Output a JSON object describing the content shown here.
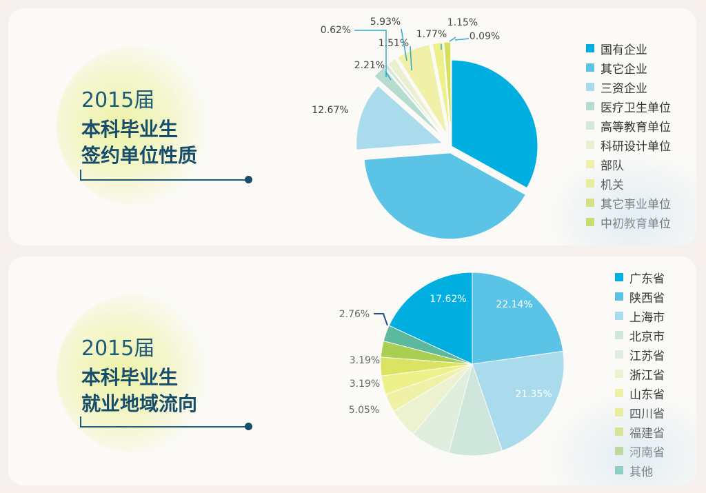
{
  "chart_data": [
    {
      "type": "pie",
      "title_year": "2015届",
      "title_line1": "本科毕业生",
      "title_line2": "签约单位性质",
      "labels": [
        "国有企业",
        "其它企业",
        "三资企业",
        "医疗卫生单位",
        "高等教育单位",
        "科研设计单位",
        "部队",
        "机关",
        "其它事业单位",
        "中初教育单位"
      ],
      "values": [
        32.69,
        40.27,
        12.67,
        2.21,
        0.62,
        1.51,
        5.93,
        1.77,
        1.15,
        0.09
      ],
      "value_labels": [
        "",
        "",
        "12.67%",
        "2.21%",
        "0.62%",
        "1.51%",
        "5.93%",
        "1.77%",
        "1.15%",
        "0.09%"
      ],
      "colors": [
        "#00aee0",
        "#5bc3e6",
        "#a9dbec",
        "#b6dcd0",
        "#d3e8d6",
        "#eaf0cf",
        "#f0f0a8",
        "#eef08a",
        "#d6e05c",
        "#c6d93a"
      ],
      "exploded": [
        0,
        2
      ]
    },
    {
      "type": "pie",
      "title_year": "2015届",
      "title_line1": "本科毕业生",
      "title_line2": "就业地域流向",
      "labels": [
        "广东省",
        "陕西省",
        "上海市",
        "北京市",
        "江苏省",
        "浙江省",
        "山东省",
        "四川省",
        "福建省",
        "河南省",
        "其他"
      ],
      "values": [
        17.62,
        22.14,
        21.35,
        9.16,
        6.87,
        5.05,
        3.19,
        3.19,
        3.19,
        2.76,
        2.76
      ],
      "value_labels": [
        "17.62%",
        "22.14%",
        "21.35%",
        "",
        "",
        "5.05%",
        "3.19%",
        "3.19%",
        "",
        "",
        "2.76%"
      ],
      "colors": [
        "#00aee0",
        "#5bc3e6",
        "#a9dbec",
        "#cfe6dd",
        "#dfeedd",
        "#ecf2cf",
        "#eff1a6",
        "#eef08a",
        "#dbe462",
        "#a9cf52",
        "#5db99e"
      ]
    }
  ]
}
